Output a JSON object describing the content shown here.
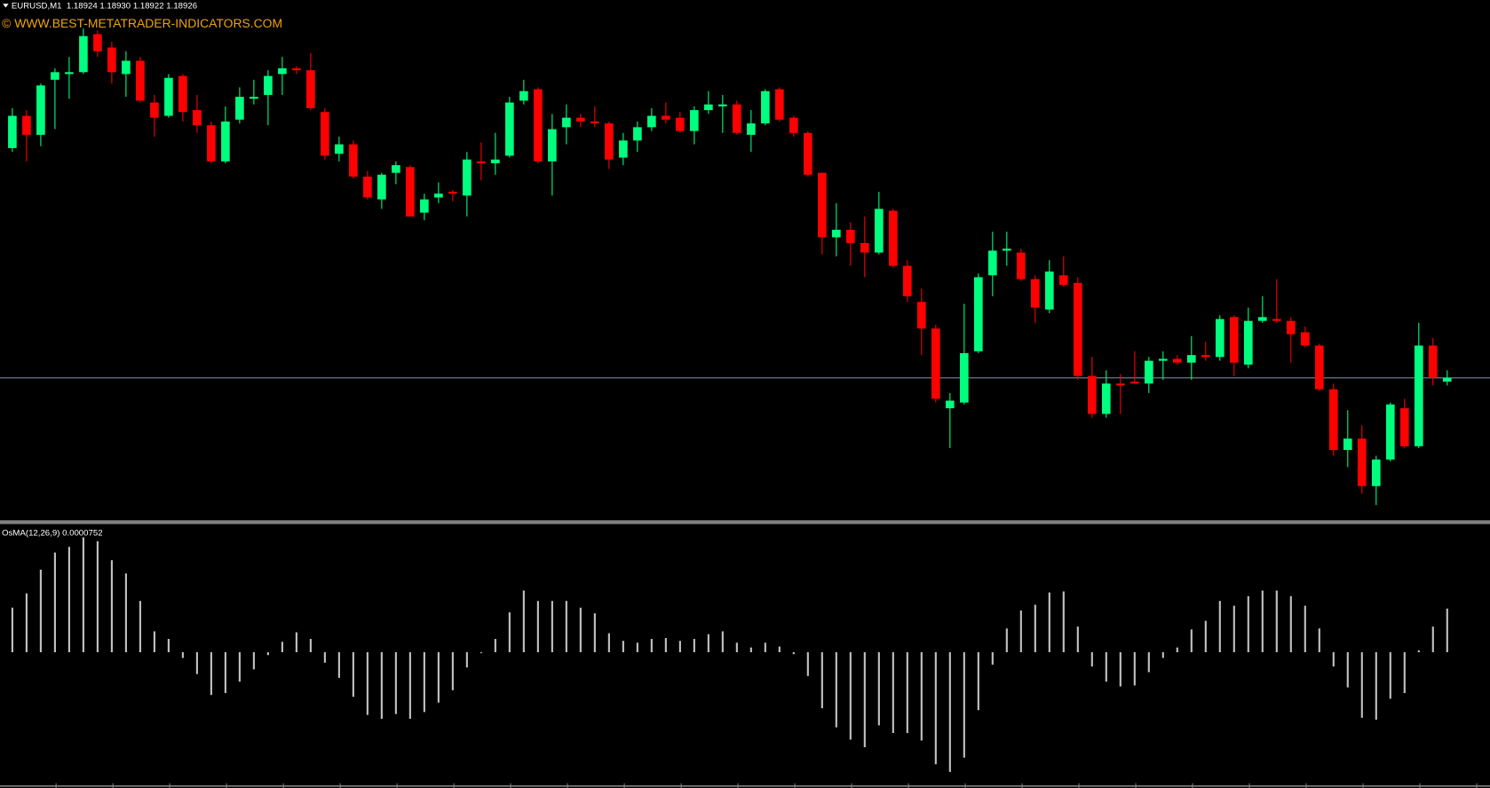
{
  "chart_data": [
    {
      "type": "candlestick",
      "header": "EURUSD,M1  1.18924 1.18930 1.18922 1.18926",
      "watermark": "© WWW.BEST-METATRADER-INDICATORS.COM",
      "up_color": "#00ff7f",
      "down_color": "#ff0000",
      "ylim": [
        1.18851,
        1.19119
      ],
      "bid_line": 1.18926,
      "bid_color": "#778899",
      "open": [
        1.19047,
        1.19064,
        1.19054,
        1.19083,
        1.19086,
        1.19087,
        1.19107,
        1.191,
        1.19086,
        1.19093,
        1.19071,
        1.19064,
        1.19085,
        1.19067,
        1.19059,
        1.1904,
        1.19062,
        1.19073,
        1.19075,
        1.19086,
        1.19089,
        1.19088,
        1.19066,
        1.19044,
        1.19049,
        1.19032,
        1.1902,
        1.19034,
        1.19037,
        1.19013,
        1.19021,
        1.19024,
        1.19022,
        1.1904,
        1.19039,
        1.19043,
        1.19072,
        1.19078,
        1.1904,
        1.19058,
        1.19063,
        1.19061,
        1.1906,
        1.19042,
        1.19051,
        1.19058,
        1.19064,
        1.19063,
        1.19056,
        1.19067,
        1.19069,
        1.1907,
        1.19054,
        1.1906,
        1.19078,
        1.19063,
        1.19055,
        1.19034,
        1.19,
        1.19004,
        1.18997,
        1.18992,
        1.19014,
        1.18985,
        1.18966,
        1.18952,
        1.1891,
        1.18913,
        1.1894,
        1.1898,
        1.18993,
        1.18992,
        1.18978,
        1.18962,
        1.1898,
        1.18976,
        1.18927,
        1.18907,
        1.18923,
        1.18924,
        1.18923,
        1.18935,
        1.18936,
        1.18934,
        1.18938,
        1.18937,
        1.18958,
        1.18933,
        1.18956,
        1.18957,
        1.18956,
        1.1895,
        1.18943,
        1.1892,
        1.18888,
        1.18894,
        1.18869,
        1.18883,
        1.1891,
        1.1889,
        1.18943,
        1.18924
      ],
      "high": [
        1.19068,
        1.19067,
        1.19081,
        1.19089,
        1.19095,
        1.1911,
        1.19109,
        1.19103,
        1.19098,
        1.19095,
        1.19075,
        1.19086,
        1.19086,
        1.19075,
        1.19061,
        1.19069,
        1.19079,
        1.19083,
        1.19088,
        1.19095,
        1.1909,
        1.19097,
        1.19068,
        1.19053,
        1.19051,
        1.19035,
        1.19034,
        1.1904,
        1.19038,
        1.19023,
        1.19029,
        1.19025,
        1.19045,
        1.1905,
        1.19055,
        1.19074,
        1.19083,
        1.19079,
        1.19065,
        1.1907,
        1.19065,
        1.19069,
        1.19061,
        1.19055,
        1.19061,
        1.19068,
        1.19071,
        1.19066,
        1.19069,
        1.19077,
        1.19075,
        1.19072,
        1.19067,
        1.19078,
        1.19079,
        1.19064,
        1.19056,
        1.19034,
        1.19018,
        1.19008,
        1.19011,
        1.19024,
        1.19015,
        1.18988,
        1.18973,
        1.18954,
        1.18918,
        1.18965,
        1.18981,
        1.19003,
        1.19003,
        1.18994,
        1.1898,
        1.18988,
        1.1899,
        1.18979,
        1.18937,
        1.1893,
        1.18928,
        1.1894,
        1.18937,
        1.1894,
        1.18938,
        1.18948,
        1.18945,
        1.18959,
        1.18959,
        1.18963,
        1.18969,
        1.18978,
        1.18958,
        1.18953,
        1.18944,
        1.18923,
        1.18909,
        1.18901,
        1.18885,
        1.18913,
        1.18915,
        1.18955,
        1.18947,
        1.1893
      ],
      "low": [
        1.19045,
        1.1904,
        1.19048,
        1.19057,
        1.19073,
        1.19086,
        1.19095,
        1.19081,
        1.19074,
        1.19071,
        1.19053,
        1.19063,
        1.19061,
        1.19055,
        1.19039,
        1.19039,
        1.1906,
        1.1907,
        1.19059,
        1.19075,
        1.19086,
        1.19067,
        1.19041,
        1.1904,
        1.19031,
        1.1902,
        1.19015,
        1.19028,
        1.19011,
        1.19009,
        1.19018,
        1.19019,
        1.19011,
        1.1903,
        1.19033,
        1.19042,
        1.1907,
        1.19039,
        1.19022,
        1.19049,
        1.19058,
        1.19058,
        1.19036,
        1.19038,
        1.19045,
        1.19056,
        1.1906,
        1.19055,
        1.19049,
        1.19065,
        1.19055,
        1.19054,
        1.19045,
        1.19059,
        1.19061,
        1.19053,
        1.19032,
        1.18991,
        1.1899,
        1.18985,
        1.18979,
        1.18991,
        1.18984,
        1.18966,
        1.18938,
        1.18913,
        1.18889,
        1.18912,
        1.18939,
        1.18969,
        1.18985,
        1.18977,
        1.18955,
        1.1896,
        1.18974,
        1.18925,
        1.18905,
        1.18905,
        1.18907,
        1.18923,
        1.18918,
        1.18925,
        1.18933,
        1.18925,
        1.18935,
        1.18935,
        1.18927,
        1.18931,
        1.18955,
        1.18955,
        1.18934,
        1.18942,
        1.18919,
        1.18885,
        1.18879,
        1.18865,
        1.18859,
        1.18882,
        1.18889,
        1.18889,
        1.18922,
        1.18922
      ],
      "close": [
        1.19064,
        1.19054,
        1.1908,
        1.19087,
        1.19087,
        1.19106,
        1.19098,
        1.19087,
        1.19093,
        1.19072,
        1.19063,
        1.19084,
        1.19066,
        1.19059,
        1.1904,
        1.19061,
        1.19074,
        1.19074,
        1.19085,
        1.19089,
        1.19088,
        1.19068,
        1.19043,
        1.19049,
        1.19032,
        1.19021,
        1.19033,
        1.19038,
        1.19011,
        1.1902,
        1.19023,
        1.19023,
        1.19041,
        1.19039,
        1.19041,
        1.19071,
        1.19077,
        1.1904,
        1.19057,
        1.19063,
        1.19061,
        1.1906,
        1.19041,
        1.19051,
        1.19058,
        1.19064,
        1.19062,
        1.19056,
        1.19067,
        1.1907,
        1.1907,
        1.19055,
        1.1906,
        1.19077,
        1.19062,
        1.19055,
        1.19033,
        1.19,
        1.19004,
        1.18997,
        1.18992,
        1.19015,
        1.18985,
        1.18969,
        1.18952,
        1.18915,
        1.18914,
        1.18939,
        1.18979,
        1.18993,
        1.18994,
        1.18978,
        1.18963,
        1.18982,
        1.18975,
        1.18927,
        1.18907,
        1.18923,
        1.18922,
        1.18923,
        1.18935,
        1.18936,
        1.18934,
        1.18938,
        1.18937,
        1.18957,
        1.18934,
        1.18956,
        1.18958,
        1.18956,
        1.18949,
        1.18943,
        1.1892,
        1.18888,
        1.18894,
        1.18869,
        1.18883,
        1.18912,
        1.1889,
        1.18943,
        1.18926,
        1.18926
      ]
    },
    {
      "type": "histogram",
      "title": "OsMA(12,26,9) 0.0000752",
      "color": "#c0c0c0",
      "ylim": [
        -0.0002305,
        0.0002207
      ],
      "values": [
        7.68e-05,
        0.0001014,
        0.0001422,
        0.0001717,
        0.0001815,
        0.0001978,
        0.0001913,
        0.0001586,
        0.0001357,
        8.83e-05,
        3.6e-05,
        2.29e-05,
        -9.8e-06,
        -3.76e-05,
        -7.36e-05,
        -7.03e-05,
        -5.07e-05,
        -2.94e-05,
        -4.9e-06,
        1.8e-05,
        3.43e-05,
        2.29e-05,
        -1.8e-05,
        -4.41e-05,
        -7.68e-05,
        -0.0001079,
        -0.0001145,
        -0.0001063,
        -0.0001145,
        -0.000103,
        -8.67e-05,
        -6.54e-05,
        -2.62e-05,
        -1.6e-06,
        2.29e-05,
        6.87e-05,
        0.0001063,
        8.83e-05,
        8.83e-05,
        8.83e-05,
        7.68e-05,
        6.7e-05,
        3.27e-05,
        1.96e-05,
        1.64e-05,
        2.29e-05,
        2.45e-05,
        1.96e-05,
        2.29e-05,
        3.11e-05,
        3.6e-05,
        1.64e-05,
        8.2e-06,
        1.64e-05,
        9.8e-06,
        -3.3e-06,
        -4.09e-05,
        -9.65e-05,
        -0.0001292,
        -0.0001504,
        -0.0001635,
        -0.0001259,
        -0.000139,
        -0.000139,
        -0.0001521,
        -0.0001929,
        -0.000206,
        -0.0001815,
        -9.97e-05,
        -2.13e-05,
        4.09e-05,
        7.19e-05,
        8.18e-05,
        0.000103,
        0.0001046,
        4.41e-05,
        -2.45e-05,
        -5.07e-05,
        -5.89e-05,
        -5.72e-05,
        -3.43e-05,
        -9.8e-06,
        8.2e-06,
        3.92e-05,
        5.4e-05,
        8.83e-05,
        8.01e-05,
        9.65e-05,
        0.0001063,
        0.0001063,
        9.65e-05,
        8.01e-05,
        4.09e-05,
        -2.45e-05,
        -6.05e-05,
        -0.0001128,
        -0.0001161,
        -8.01e-05,
        -7.03e-05,
        3.3e-06,
        4.41e-05,
        7.52e-05
      ]
    }
  ]
}
